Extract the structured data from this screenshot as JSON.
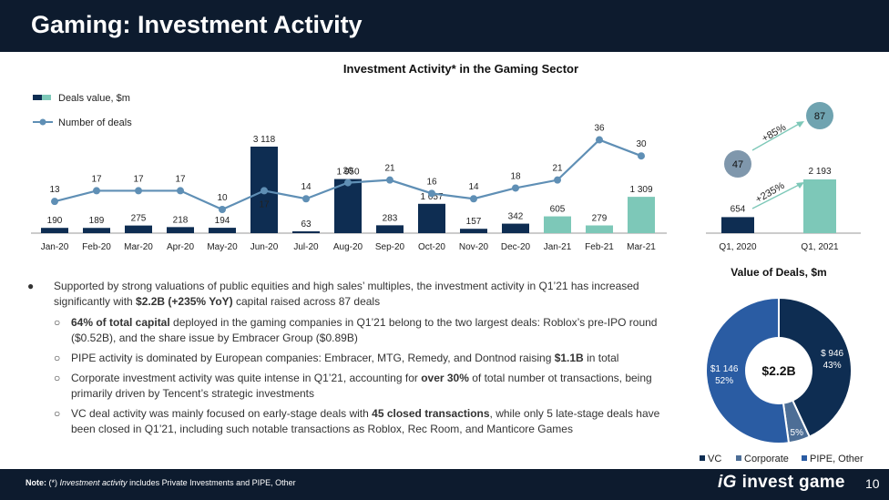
{
  "header": {
    "title": "Gaming: Investment Activity"
  },
  "main_chart": {
    "title": "Investment Activity* in the Gaming Sector"
  },
  "legend": {
    "deals_value": "Deals value, $m",
    "num_deals": "Number of deals"
  },
  "chart_data": [
    {
      "type": "bar+line",
      "title": "Investment Activity* in the Gaming Sector",
      "categories": [
        "Jan-20",
        "Feb-20",
        "Mar-20",
        "Apr-20",
        "May-20",
        "Jun-20",
        "Jul-20",
        "Aug-20",
        "Sep-20",
        "Oct-20",
        "Nov-20",
        "Dec-20",
        "Jan-21",
        "Feb-21",
        "Mar-21"
      ],
      "series": [
        {
          "name": "Deals value, $m",
          "type": "bar",
          "values": [
            190,
            189,
            275,
            218,
            194,
            3118,
            63,
            1950,
            283,
            1057,
            157,
            342,
            605,
            279,
            1309
          ],
          "labels": [
            "190",
            "189",
            "275",
            "218",
            "194",
            "3 118",
            "63",
            "1 950",
            "283",
            "1 057",
            "157",
            "342",
            "605",
            "279",
            "1 309"
          ],
          "colors": [
            "#0e2d52",
            "#0e2d52",
            "#0e2d52",
            "#0e2d52",
            "#0e2d52",
            "#0e2d52",
            "#0e2d52",
            "#0e2d52",
            "#0e2d52",
            "#0e2d52",
            "#0e2d52",
            "#0e2d52",
            "#7dc8b8",
            "#7dc8b8",
            "#7dc8b8"
          ]
        },
        {
          "name": "Number of deals",
          "type": "line",
          "values": [
            13,
            17,
            17,
            17,
            10,
            17,
            14,
            20,
            21,
            16,
            14,
            18,
            21,
            36,
            30
          ]
        }
      ],
      "line_color": "#5f8fb5"
    },
    {
      "type": "bar",
      "categories": [
        "Q1, 2020",
        "Q1, 2021"
      ],
      "values": [
        654,
        2193
      ],
      "labels": [
        "654",
        "2 193"
      ],
      "colors": [
        "#0e2d52",
        "#7dc8b8"
      ],
      "deal_counts": [
        "47",
        "87"
      ],
      "annotations": [
        "+85%",
        "+235%"
      ]
    },
    {
      "type": "pie",
      "title": "Value of Deals, $m",
      "center_label": "$2.2B",
      "slices": [
        {
          "name": "VC",
          "value": 946,
          "percent": 43,
          "label": "$ 946",
          "pct_label": "43%",
          "color": "#0e2d52"
        },
        {
          "name": "Corporate",
          "value": 104,
          "percent": 5,
          "label": "",
          "pct_label": "5%",
          "color": "#4d6e96"
        },
        {
          "name": "PIPE, Other",
          "value": 1146,
          "percent": 52,
          "label": "$1 146",
          "pct_label": "52%",
          "color": "#2a5ca3"
        }
      ]
    }
  ],
  "bullets": {
    "b1_pre": "Supported by strong valuations of public equities and high sales’ multiples, the investment activity in Q1’21 has increased significantly with ",
    "b1_bold": "$2.2B (+235% YoY)",
    "b1_post": " capital raised across 87 deals",
    "s1_bold": "64% of total capital",
    "s1_post": " deployed in the gaming companies in Q1’21 belong to the two largest deals: Roblox’s pre-IPO round ($0.52B), and the share issue by Embracer Group ($0.89B)",
    "s2_pre": "PIPE activity is dominated by European companies: Embracer, MTG, Remedy, and Dontnod raising ",
    "s2_bold": "$1.1B",
    "s2_post": " in total",
    "s3_pre": "Corporate investment activity was quite intense in Q1’21, accounting for ",
    "s3_bold": "over 30%",
    "s3_post": " of total number ot transactions, being primarily driven by Tencent’s strategic investments",
    "s4_pre": "VC deal activity was mainly focused on early-stage deals with ",
    "s4_bold": "45 closed transactions",
    "s4_post": ", while only 5 late-stage deals have been closed in Q1’21, including such notable transactions as Roblox, Rec Room, and Manticore Games",
    "dot": "●",
    "circle": "○"
  },
  "footer": {
    "note_label": "Note:",
    "note_mark": "(*)",
    "note_italic": "Investment activity",
    "note_rest": "includes Private Investments and PIPE, Other",
    "brand": "invest game",
    "logo": "iG",
    "page": "10"
  }
}
